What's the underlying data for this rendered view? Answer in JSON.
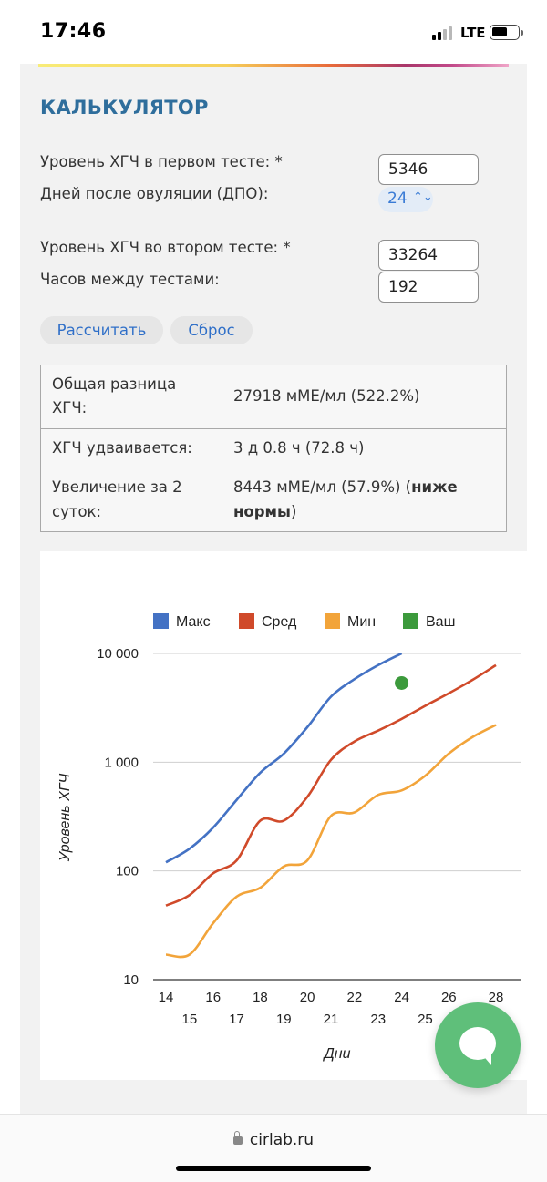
{
  "status": {
    "time": "17:46",
    "network": "LTE"
  },
  "calculator": {
    "title": "КАЛЬКУЛЯТОР",
    "label_first_test": "Уровень ХГЧ в первом тесте: *",
    "value_first_test": "5346",
    "label_dpo": "Дней после овуляции (ДПО):",
    "value_dpo": "24",
    "label_second_test": "Уровень ХГЧ во втором тесте: *",
    "value_second_test": "33264",
    "label_hours": "Часов между тестами:",
    "value_hours": "192",
    "calc_button": "Рассчитать",
    "reset_button": "Сброс"
  },
  "results": {
    "rows": [
      {
        "key": "Общая разница ХГЧ:",
        "value": "27918 мМЕ/мл (522.2%)"
      },
      {
        "key": "ХГЧ удваивается:",
        "value": "3 д 0.8 ч (72.8 ч)"
      },
      {
        "key": "Увеличение за 2 суток:",
        "value_prefix": "8443 мМЕ/мл (57.9%) (",
        "value_bold": "ниже нормы",
        "value_suffix": ")"
      }
    ]
  },
  "chart_data": {
    "type": "line",
    "xlabel": "Дни",
    "ylabel": "Уровень ХГЧ",
    "yscale": "log",
    "ylim": [
      10,
      10000
    ],
    "xlim": [
      14,
      28
    ],
    "yticks": [
      10,
      100,
      1000,
      10000
    ],
    "ytick_labels": [
      "10",
      "100",
      "1 000",
      "10 000"
    ],
    "xticks": [
      14,
      15,
      16,
      17,
      18,
      19,
      20,
      21,
      22,
      23,
      24,
      25,
      26,
      27,
      28
    ],
    "xtick_labels": [
      "14",
      "15",
      "16",
      "17",
      "18",
      "19",
      "20",
      "21",
      "22",
      "23",
      "24",
      "25",
      "26",
      "27",
      "28"
    ],
    "grid": true,
    "legend_position": "top",
    "series": [
      {
        "name": "Макс",
        "color": "#4472c4",
        "x": [
          14,
          15,
          16,
          17,
          18,
          19,
          20,
          21,
          22,
          23,
          24
        ],
        "values": [
          120,
          160,
          250,
          450,
          800,
          1200,
          2100,
          4000,
          5800,
          7800,
          10000
        ]
      },
      {
        "name": "Сред",
        "color": "#d04a2a",
        "x": [
          14,
          15,
          16,
          17,
          18,
          19,
          20,
          21,
          22,
          23,
          24,
          25,
          26,
          27,
          28
        ],
        "values": [
          48,
          60,
          95,
          125,
          290,
          290,
          480,
          1050,
          1550,
          1950,
          2500,
          3300,
          4300,
          5700,
          7800
        ]
      },
      {
        "name": "Мин",
        "color": "#f2a43a",
        "x": [
          14,
          15,
          16,
          17,
          18,
          19,
          20,
          21,
          22,
          23,
          24,
          25,
          26,
          27,
          28
        ],
        "values": [
          17,
          17,
          33,
          58,
          70,
          110,
          125,
          320,
          345,
          500,
          550,
          750,
          1200,
          1700,
          2200
        ]
      },
      {
        "name": "Ваш",
        "color": "#3c9a3c",
        "type": "scatter",
        "x": [
          24
        ],
        "values": [
          5346
        ]
      }
    ]
  },
  "footer": {
    "url": "cirlab.ru"
  }
}
